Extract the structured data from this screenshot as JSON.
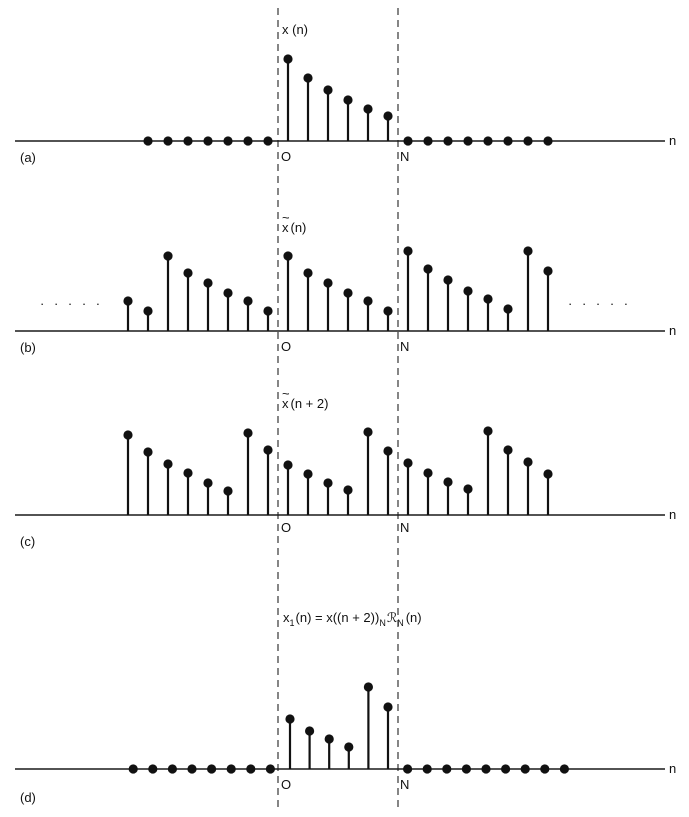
{
  "figure": {
    "axis_variable": "n",
    "origin_label": "O",
    "period_label": "N",
    "ellipsis": "· · · · ·",
    "colors": {
      "ink": "#111111",
      "background": "#ffffff"
    }
  },
  "panels": [
    {
      "id": "a",
      "tag": "(a)",
      "title": "x (n)",
      "stems": [
        {
          "n": -7,
          "v": 0
        },
        {
          "n": -6,
          "v": 0
        },
        {
          "n": -5,
          "v": 0
        },
        {
          "n": -4,
          "v": 0
        },
        {
          "n": -3,
          "v": 0
        },
        {
          "n": -2,
          "v": 0
        },
        {
          "n": -1,
          "v": 0
        },
        {
          "n": 0,
          "v": 82
        },
        {
          "n": 1,
          "v": 63
        },
        {
          "n": 2,
          "v": 51
        },
        {
          "n": 3,
          "v": 41
        },
        {
          "n": 4,
          "v": 32
        },
        {
          "n": 5,
          "v": 25
        },
        {
          "n": 6,
          "v": 0
        },
        {
          "n": 7,
          "v": 0
        },
        {
          "n": 8,
          "v": 0
        },
        {
          "n": 9,
          "v": 0
        },
        {
          "n": 10,
          "v": 0
        },
        {
          "n": 11,
          "v": 0
        },
        {
          "n": 12,
          "v": 0
        },
        {
          "n": 13,
          "v": 0
        }
      ]
    },
    {
      "id": "b",
      "tag": "(b)",
      "title_parts": [
        "x",
        "(n)"
      ],
      "ellipsis_left": true,
      "ellipsis_right": true,
      "stems": [
        {
          "n": -8,
          "v": 30
        },
        {
          "n": -7,
          "v": 20
        },
        {
          "n": -6,
          "v": 75
        },
        {
          "n": -5,
          "v": 58
        },
        {
          "n": -4,
          "v": 48
        },
        {
          "n": -3,
          "v": 38
        },
        {
          "n": -2,
          "v": 30
        },
        {
          "n": -1,
          "v": 20
        },
        {
          "n": 0,
          "v": 75
        },
        {
          "n": 1,
          "v": 58
        },
        {
          "n": 2,
          "v": 48
        },
        {
          "n": 3,
          "v": 38
        },
        {
          "n": 4,
          "v": 30
        },
        {
          "n": 5,
          "v": 20
        },
        {
          "n": 6,
          "v": 80
        },
        {
          "n": 7,
          "v": 62
        },
        {
          "n": 8,
          "v": 51
        },
        {
          "n": 9,
          "v": 40
        },
        {
          "n": 10,
          "v": 32
        },
        {
          "n": 11,
          "v": 22
        },
        {
          "n": 12,
          "v": 80
        },
        {
          "n": 13,
          "v": 60
        }
      ]
    },
    {
      "id": "c",
      "tag": "(c)",
      "title_parts": [
        "x",
        "(n + 2)"
      ],
      "stems": [
        {
          "n": -8,
          "v": 80
        },
        {
          "n": -7,
          "v": 63
        },
        {
          "n": -6,
          "v": 51
        },
        {
          "n": -5,
          "v": 42
        },
        {
          "n": -4,
          "v": 32
        },
        {
          "n": -3,
          "v": 24
        },
        {
          "n": -2,
          "v": 82
        },
        {
          "n": -1,
          "v": 65
        },
        {
          "n": 0,
          "v": 50
        },
        {
          "n": 1,
          "v": 41
        },
        {
          "n": 2,
          "v": 32
        },
        {
          "n": 3,
          "v": 25
        },
        {
          "n": 4,
          "v": 83
        },
        {
          "n": 5,
          "v": 64
        },
        {
          "n": 6,
          "v": 52
        },
        {
          "n": 7,
          "v": 42
        },
        {
          "n": 8,
          "v": 33
        },
        {
          "n": 9,
          "v": 26
        },
        {
          "n": 10,
          "v": 84
        },
        {
          "n": 11,
          "v": 65
        },
        {
          "n": 12,
          "v": 53
        },
        {
          "n": 13,
          "v": 41
        }
      ]
    },
    {
      "id": "d",
      "tag": "(d)",
      "title_main": "x",
      "title_sub": "1",
      "title_mid": "(n) = x((n + 2))",
      "title_sub2": "N",
      "title_script": "ℛ",
      "title_sub3": "N",
      "title_end": "(n)",
      "stems": [
        {
          "n": -8,
          "v": 0
        },
        {
          "n": -7,
          "v": 0
        },
        {
          "n": -6,
          "v": 0
        },
        {
          "n": -5,
          "v": 0
        },
        {
          "n": -4,
          "v": 0
        },
        {
          "n": -3,
          "v": 0
        },
        {
          "n": -2,
          "v": 0
        },
        {
          "n": -1,
          "v": 0
        },
        {
          "n": 0,
          "v": 50
        },
        {
          "n": 1,
          "v": 38
        },
        {
          "n": 2,
          "v": 30
        },
        {
          "n": 3,
          "v": 22
        },
        {
          "n": 4,
          "v": 82
        },
        {
          "n": 5,
          "v": 62
        },
        {
          "n": 6,
          "v": 0
        },
        {
          "n": 7,
          "v": 0
        },
        {
          "n": 8,
          "v": 0
        },
        {
          "n": 9,
          "v": 0
        },
        {
          "n": 10,
          "v": 0
        },
        {
          "n": 11,
          "v": 0
        },
        {
          "n": 12,
          "v": 0
        },
        {
          "n": 13,
          "v": 0
        },
        {
          "n": 14,
          "v": 0
        }
      ]
    }
  ]
}
